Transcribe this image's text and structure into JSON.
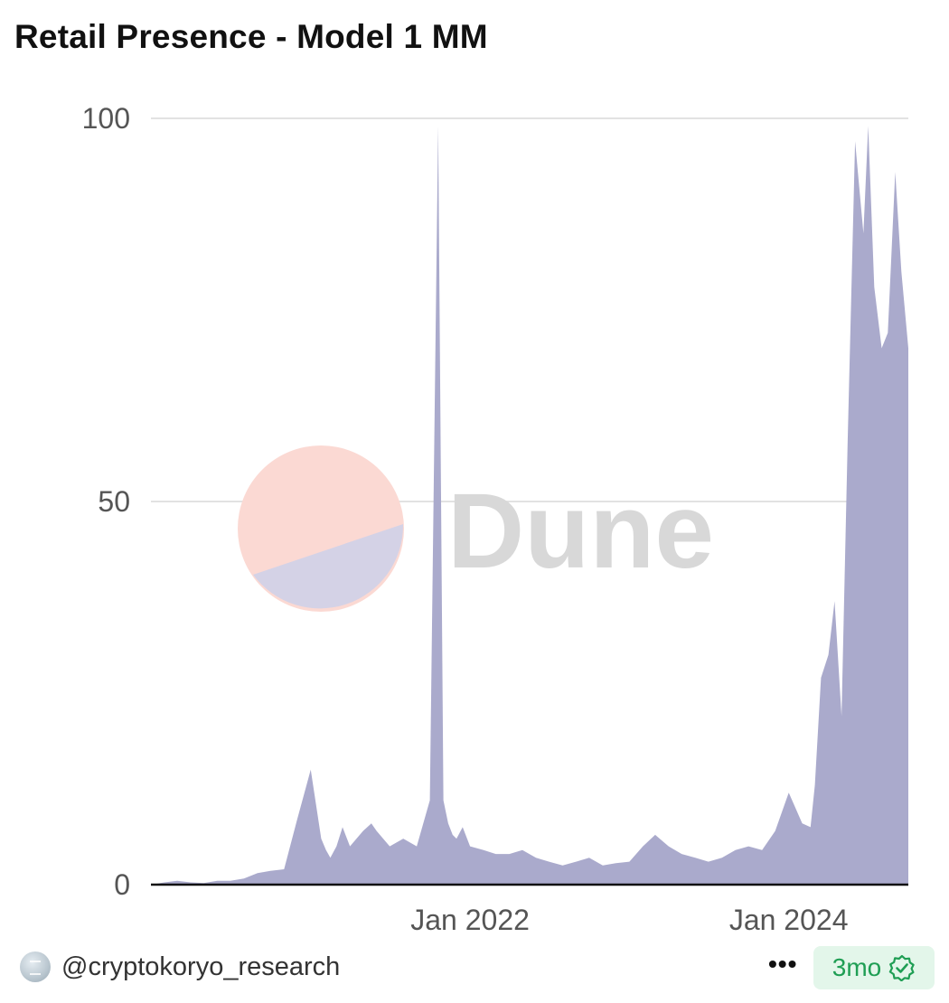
{
  "header": {
    "title": "Retail Presence - Model 1 MM"
  },
  "footer": {
    "author": "@cryptokoryo_research",
    "more_label": "•••",
    "age_label": "3mo"
  },
  "watermark": {
    "text": "Dune"
  },
  "colors": {
    "area_fill": "#aaaacc",
    "grid": "#e2e2e2",
    "axis": "#111111",
    "tick_text": "#555555",
    "badge_text": "#1f9e54",
    "badge_bg": "#e3f6ea"
  },
  "chart_data": {
    "type": "area",
    "title": "Retail Presence - Model 1 MM",
    "xlabel": "",
    "ylabel": "",
    "ylim": [
      0,
      100
    ],
    "xlim": [
      "2020-01-01",
      "2024-10-01"
    ],
    "grid": true,
    "legend": "none",
    "x_ticks": [
      {
        "label": "Jan 2022",
        "value": "2022-01-01"
      },
      {
        "label": "Jan 2024",
        "value": "2024-01-01"
      }
    ],
    "y_ticks": [
      {
        "label": "0",
        "value": 0
      },
      {
        "label": "50",
        "value": 50
      },
      {
        "label": "100",
        "value": 100
      }
    ],
    "series": [
      {
        "x": [
          "2020-01-01",
          "2020-02-01",
          "2020-03-01",
          "2020-04-01",
          "2020-05-01",
          "2020-06-01",
          "2020-07-01",
          "2020-08-01",
          "2020-09-01",
          "2020-10-01",
          "2020-11-01",
          "2020-12-01",
          "2021-01-01",
          "2021-01-25",
          "2021-02-05",
          "2021-02-15",
          "2021-03-01",
          "2021-03-15",
          "2021-04-01",
          "2021-05-01",
          "2021-05-20",
          "2021-06-01",
          "2021-07-01",
          "2021-08-01",
          "2021-09-01",
          "2021-10-01",
          "2021-10-20",
          "2021-11-01",
          "2021-11-12",
          "2021-11-22",
          "2021-12-01",
          "2021-12-15",
          "2022-01-01",
          "2022-02-01",
          "2022-03-01",
          "2022-04-01",
          "2022-05-01",
          "2022-06-01",
          "2022-07-01",
          "2022-08-01",
          "2022-09-01",
          "2022-10-01",
          "2022-11-01",
          "2022-12-01",
          "2023-01-01",
          "2023-02-01",
          "2023-03-01",
          "2023-04-01",
          "2023-05-01",
          "2023-06-01",
          "2023-07-01",
          "2023-08-01",
          "2023-09-01",
          "2023-10-01",
          "2023-11-01",
          "2023-12-01",
          "2024-01-01",
          "2024-02-01",
          "2024-02-20",
          "2024-03-01",
          "2024-03-15",
          "2024-04-01",
          "2024-04-15",
          "2024-05-01",
          "2024-05-15",
          "2024-06-01",
          "2024-06-20",
          "2024-07-01",
          "2024-07-15",
          "2024-08-01",
          "2024-08-15",
          "2024-09-01",
          "2024-09-15",
          "2024-10-01"
        ],
        "y": [
          0,
          0.3,
          0.5,
          0.3,
          0.2,
          0.5,
          0.5,
          0.8,
          1.5,
          1.8,
          2,
          8.5,
          15,
          6,
          4.5,
          3.5,
          5,
          7.5,
          5,
          7,
          8,
          7,
          5,
          6,
          5,
          11,
          99,
          11,
          8,
          6.5,
          6,
          7.5,
          5,
          4.5,
          4,
          4,
          4.5,
          3.5,
          3,
          2.5,
          3,
          3.5,
          2.5,
          2.8,
          3,
          5,
          6.5,
          5,
          4,
          3.5,
          3,
          3.5,
          4.5,
          5,
          4.5,
          7,
          12,
          8,
          7.5,
          13,
          27,
          30,
          37,
          22,
          58,
          97,
          85,
          99,
          78,
          70,
          72,
          93,
          80,
          70
        ]
      }
    ]
  }
}
